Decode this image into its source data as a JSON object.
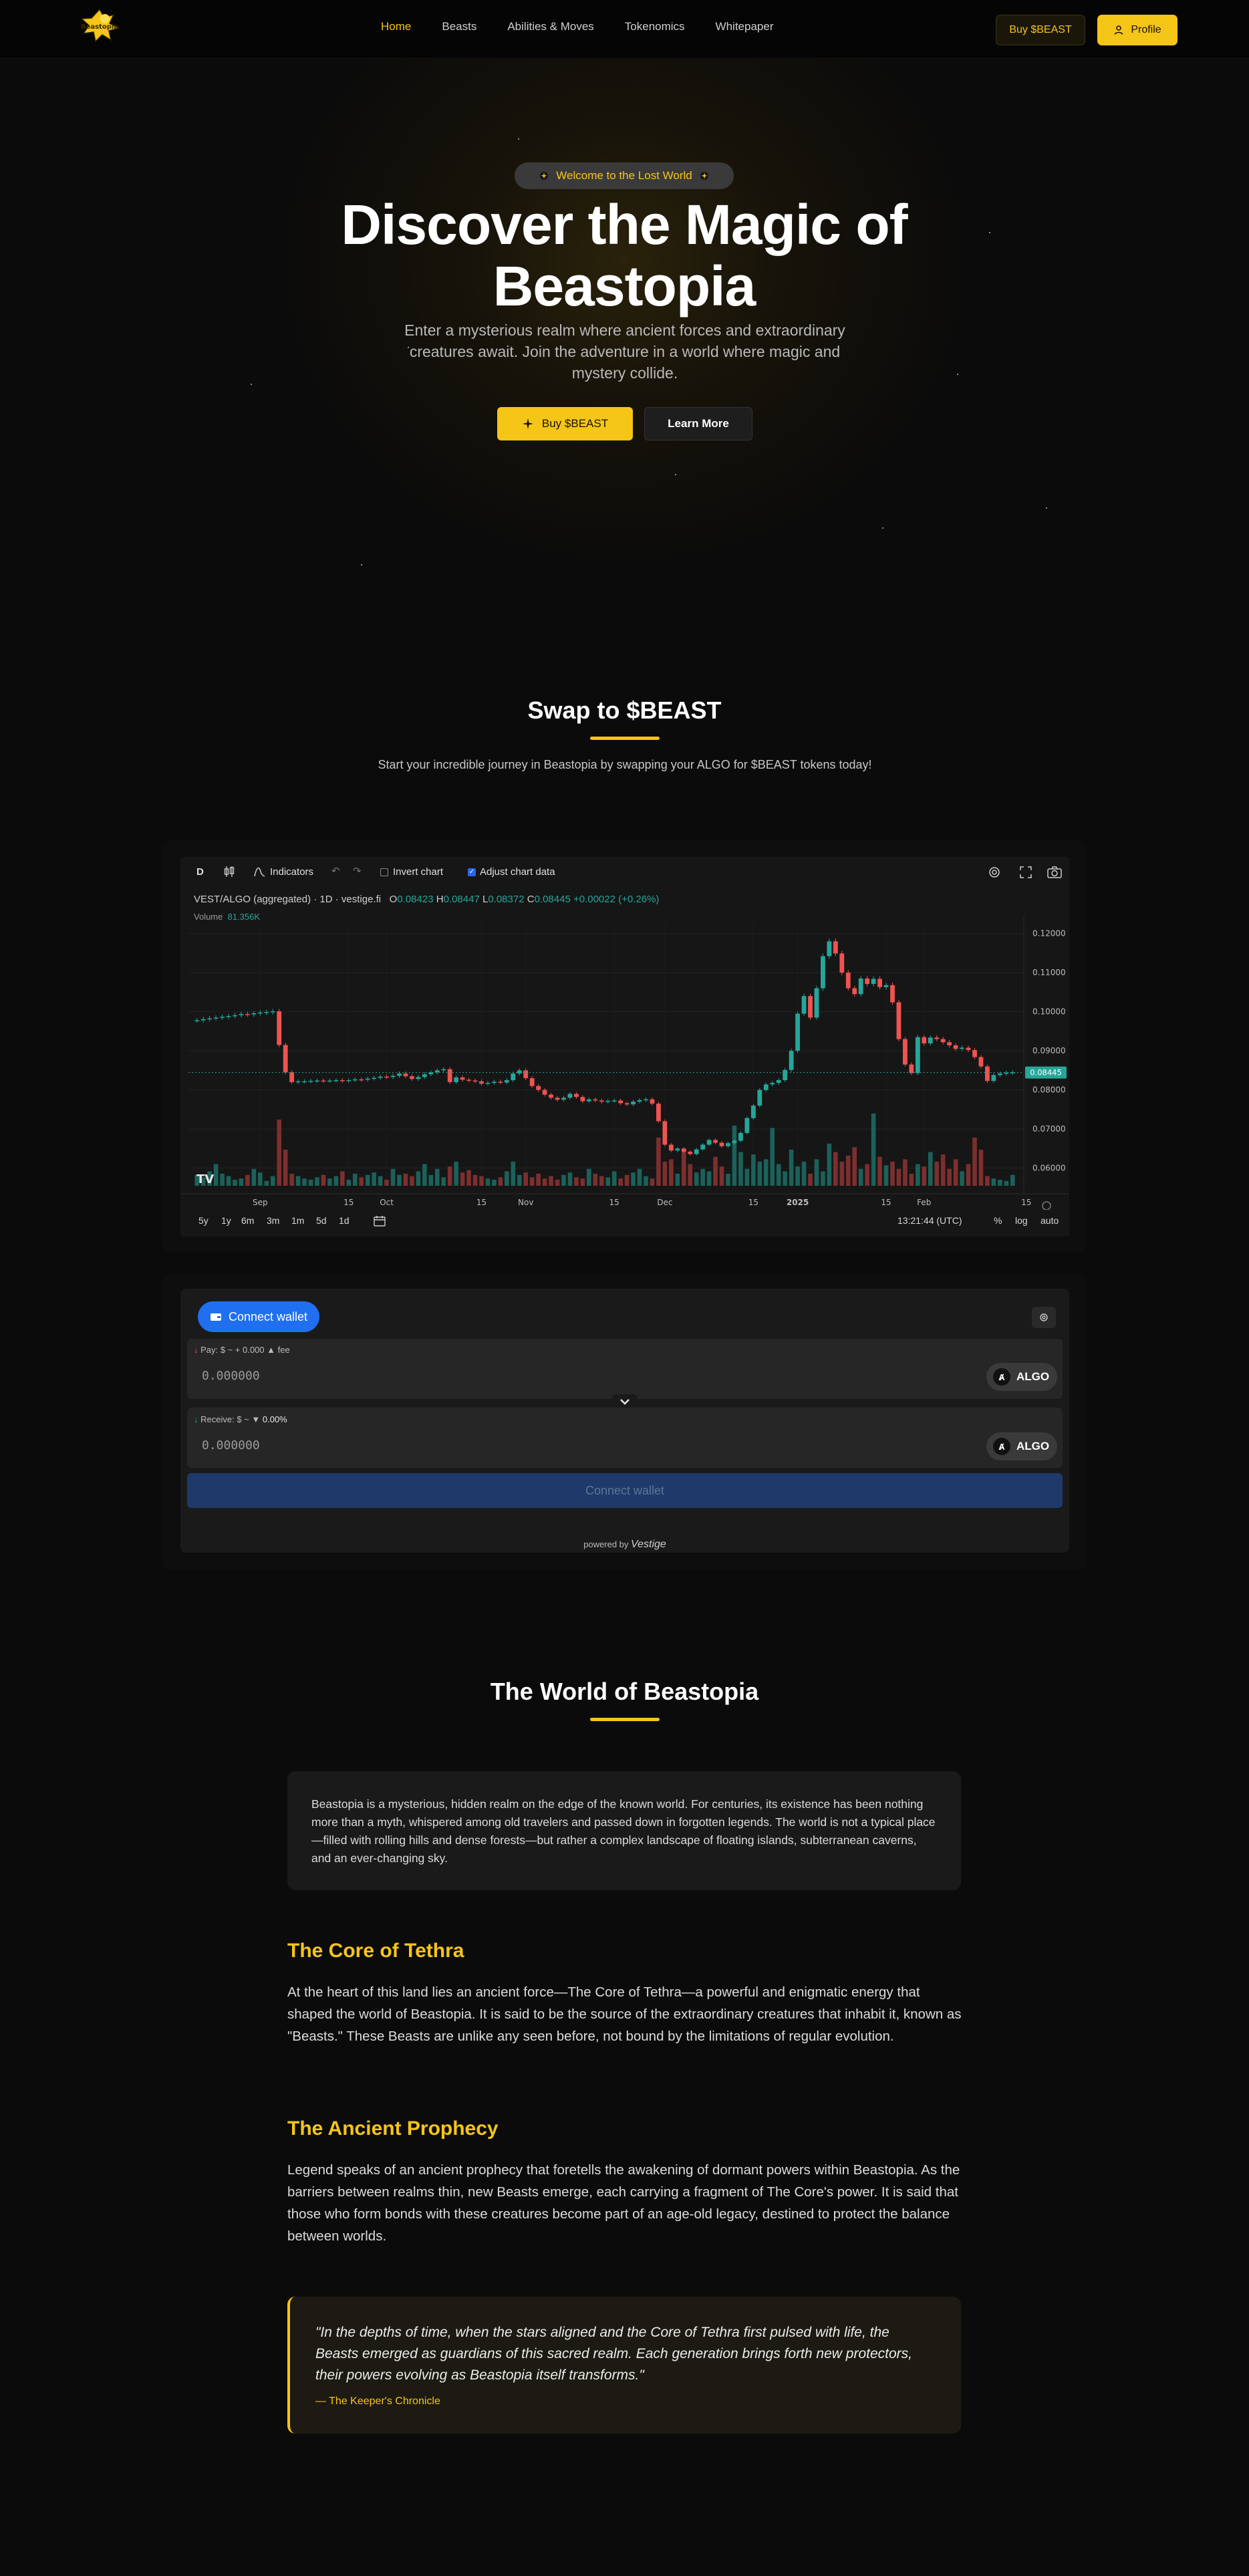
{
  "nav": {
    "logo_text": "Beastopia",
    "links": [
      "Home",
      "Beasts",
      "Abilities & Moves",
      "Tokenomics",
      "Whitepaper"
    ],
    "buy_label": "Buy $BEAST",
    "profile_label": "Profile"
  },
  "hero": {
    "badge": "Welcome to the Lost World",
    "title": "Discover the Magic of Beastopia",
    "subtitle": "Enter a mysterious realm where ancient forces and extraordinary creatures await. Join the adventure in a world where magic and mystery collide.",
    "buy_label": "Buy $BEAST",
    "learn_label": "Learn More"
  },
  "swap_section": {
    "title": "Swap to $BEAST",
    "subtitle": "Start your incredible journey in Beastopia by swapping your ALGO for $BEAST tokens today!"
  },
  "chart_toolbar": {
    "interval": "D",
    "indicators": "Indicators",
    "invert": "Invert chart",
    "adjust": "Adjust chart data"
  },
  "chart_legend": {
    "symbol": "VEST/ALGO (aggregated) · 1D · vestige.fi",
    "o_label": "O",
    "o": "0.08423",
    "h_label": "H",
    "h": "0.08447",
    "l_label": "L",
    "l": "0.08372",
    "c_label": "C",
    "c": "0.08445",
    "change": "+0.00022 (+0.26%)",
    "volume_label": "Volume",
    "volume": "81.356K",
    "last_price": "0.08445"
  },
  "chart_footer": {
    "ranges": [
      "5y",
      "1y",
      "6m",
      "3m",
      "1m",
      "5d",
      "1d"
    ],
    "time": "13:21:44 (UTC)",
    "options": [
      "%",
      "log",
      "auto"
    ]
  },
  "chart_data": {
    "type": "candlestick",
    "title": "VEST/ALGO (aggregated) · 1D · vestige.fi",
    "y_ticks": [
      "0.12000",
      "0.11000",
      "0.10000",
      "0.09000",
      "0.08000",
      "0.07000",
      "0.06000"
    ],
    "ylim": [
      0.0555,
      0.1225
    ],
    "x_ticks": [
      "Sep",
      "15",
      "Oct",
      "15",
      "Nov",
      "15",
      "Dec",
      "15",
      "2025",
      "15",
      "Feb",
      "15"
    ],
    "close": [
      0.0978,
      0.0981,
      0.0983,
      0.0985,
      0.0987,
      0.0989,
      0.0991,
      0.0994,
      0.0993,
      0.0996,
      0.0998,
      0.0999,
      0.1001,
      0.0915,
      0.0845,
      0.082,
      0.0822,
      0.0822,
      0.0823,
      0.0824,
      0.0823,
      0.0824,
      0.0825,
      0.0823,
      0.0825,
      0.0827,
      0.0826,
      0.0829,
      0.0831,
      0.0834,
      0.0833,
      0.0836,
      0.0842,
      0.0835,
      0.0828,
      0.0833,
      0.084,
      0.0845,
      0.085,
      0.0853,
      0.082,
      0.0832,
      0.0826,
      0.0824,
      0.0822,
      0.0816,
      0.0818,
      0.0821,
      0.0819,
      0.0825,
      0.0842,
      0.085,
      0.083,
      0.081,
      0.08,
      0.0788,
      0.078,
      0.0775,
      0.078,
      0.079,
      0.0782,
      0.0771,
      0.0776,
      0.0773,
      0.077,
      0.0772,
      0.0773,
      0.0766,
      0.0763,
      0.077,
      0.0774,
      0.0776,
      0.0765,
      0.072,
      0.066,
      0.0645,
      0.065,
      0.0642,
      0.0636,
      0.0648,
      0.066,
      0.0672,
      0.0665,
      0.0656,
      0.0664,
      0.067,
      0.069,
      0.0728,
      0.076,
      0.08,
      0.0814,
      0.0818,
      0.0825,
      0.0851,
      0.09,
      0.0995,
      0.104,
      0.0985,
      0.106,
      0.1142,
      0.118,
      0.1149,
      0.11,
      0.106,
      0.1045,
      0.1085,
      0.1071,
      0.1084,
      0.1063,
      0.1068,
      0.1024,
      0.093,
      0.0865,
      0.0843,
      0.0935,
      0.0919,
      0.0934,
      0.093,
      0.0922,
      0.0914,
      0.0905,
      0.0908,
      0.0902,
      0.0884,
      0.086,
      0.0823,
      0.0838,
      0.0842,
      0.0844,
      0.0845
    ],
    "volume": [
      9,
      7,
      12,
      18,
      10,
      8,
      5,
      6,
      9,
      14,
      11,
      4,
      8,
      55,
      30,
      10,
      8,
      6,
      5,
      7,
      9,
      6,
      8,
      12,
      5,
      10,
      7,
      9,
      11,
      8,
      5,
      14,
      9,
      10,
      8,
      12,
      18,
      9,
      14,
      7,
      16,
      20,
      11,
      13,
      9,
      8,
      6,
      5,
      7,
      12,
      20,
      9,
      11,
      7,
      10,
      6,
      8,
      5,
      9,
      11,
      7,
      6,
      14,
      10,
      8,
      7,
      12,
      6,
      9,
      11,
      14,
      8,
      6,
      40,
      20,
      22,
      10,
      30,
      18,
      11,
      14,
      12,
      24,
      16,
      10,
      50,
      28,
      14,
      26,
      20,
      22,
      48,
      18,
      12,
      30,
      16,
      20,
      10,
      22,
      12,
      35,
      28,
      20,
      25,
      32,
      14,
      18,
      60,
      24,
      17,
      20,
      14,
      22,
      10,
      18,
      16,
      28,
      20,
      26,
      14,
      22,
      12,
      18,
      40,
      30,
      8,
      6,
      5,
      4,
      9
    ]
  },
  "swap_widget": {
    "connect_label": "Connect wallet",
    "pay_label": "Pay: $ ~ + 0.000",
    "pay_fee": "fee",
    "pay_value": "0.000000",
    "pay_token": "ALGO",
    "receive_label": "Receive: $ ~",
    "receive_pct": "0.00%",
    "receive_value": "0.000000",
    "receive_token": "ALGO",
    "connect_big": "Connect wallet",
    "powered_by": "powered by",
    "powered_brand": "Vestige"
  },
  "world": {
    "title": "The World of Beastopia",
    "intro": "Beastopia is a mysterious, hidden realm on the edge of the known world. For centuries, its existence has been nothing more than a myth, whispered among old travelers and passed down in forgotten legends. The world is not a typical place—filled with rolling hills and dense forests—but rather a complex landscape of floating islands, subterranean caverns, and an ever-changing sky.",
    "core_title": "The Core of Tethra",
    "core_text": "At the heart of this land lies an ancient force—The Core of Tethra—a powerful and enigmatic energy that shaped the world of Beastopia. It is said to be the source of the extraordinary creatures that inhabit it, known as \"Beasts.\" These Beasts are unlike any seen before, not bound by the limitations of regular evolution.",
    "prophecy_title": "The Ancient Prophecy",
    "prophecy_text": "Legend speaks of an ancient prophecy that foretells the awakening of dormant powers within Beastopia. As the barriers between realms thin, new Beasts emerge, each carrying a fragment of The Core's power. It is said that those who form bonds with these creatures become part of an age-old legacy, destined to protect the balance between worlds.",
    "quote": "\"In the depths of time, when the stars aligned and the Core of Tethra first pulsed with life, the Beasts emerged as guardians of this sacred realm. Each generation brings forth new protectors, their powers evolving as Beastopia itself transforms.\"",
    "quote_source": "— The Keeper's Chronicle"
  },
  "colors": {
    "accent": "#f5c518",
    "up": "#26a69a",
    "down": "#ef5350",
    "blue": "#1f6ff0"
  }
}
